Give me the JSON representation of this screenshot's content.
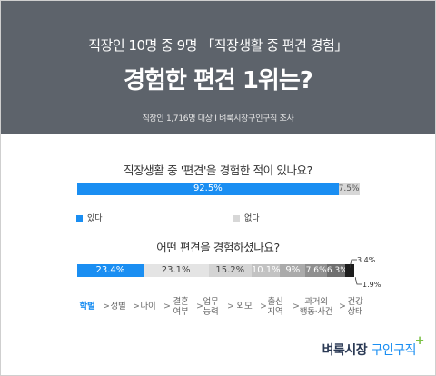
{
  "header": {
    "subtitle": "직장인 10명 중 9명 「직장생활 중 편견 경험」",
    "title": "경험한 편견 1위는?",
    "note": "직장인 1,716명 대상  I  벼룩시장구인구직 조사"
  },
  "colors": {
    "header_bg": "#5d636b",
    "accent": "#1a8ef2",
    "gray": "#d7d7d7",
    "dark": "#1d1d1d"
  },
  "chart_data": [
    {
      "type": "bar",
      "title": "직장생활 중 '편견'을 경험한 적이 있나요?",
      "series": [
        {
          "name": "있다",
          "value": 92.5,
          "label": "92.5%",
          "color": "#1a8ef2"
        },
        {
          "name": "없다",
          "value": 7.5,
          "label": "7.5%",
          "color": "#d7d7d7"
        }
      ]
    },
    {
      "type": "bar",
      "title": "어떤 편견을 경험하셨나요?",
      "series": [
        {
          "name": "학벌",
          "value": 23.4,
          "label": "23.4%",
          "color": "#1a8ef2"
        },
        {
          "name": "성별",
          "value": 23.1,
          "label": "23.1%",
          "color": "#e4e4e4"
        },
        {
          "name": "나이",
          "value": 15.2,
          "label": "15.2%",
          "color": "#d4d4d4"
        },
        {
          "name": "결혼 여부",
          "value": 10.1,
          "label": "10.1%",
          "color": "#c2c2c2"
        },
        {
          "name": "업무 능력",
          "value": 9,
          "label": "9%",
          "color": "#aaaaaa"
        },
        {
          "name": "외모",
          "value": 7.6,
          "label": "7.6%",
          "color": "#8f8f8f"
        },
        {
          "name": "출신 지역",
          "value": 6.3,
          "label": "6.3%",
          "color": "#6f6f6f"
        },
        {
          "name": "과거의 행동·사건",
          "value": 3.4,
          "label": "3.4%",
          "color": "#1d1d1d"
        },
        {
          "name": "건강 상태",
          "value": 1.9,
          "label": "1.9%",
          "color": "#ffffff"
        }
      ],
      "categories_display": [
        "학벌",
        "성별",
        "나이",
        "결혼\n여부",
        "업무\n능력",
        "외모",
        "출신\n지역",
        "과거의\n행동·사건",
        "건강\n상태"
      ]
    }
  ],
  "legend": {
    "yes": "있다",
    "no": "없다"
  },
  "arrow": ">",
  "logo": {
    "part1": "벼룩시장 ",
    "part2": "구인구직",
    "plus": "+"
  }
}
